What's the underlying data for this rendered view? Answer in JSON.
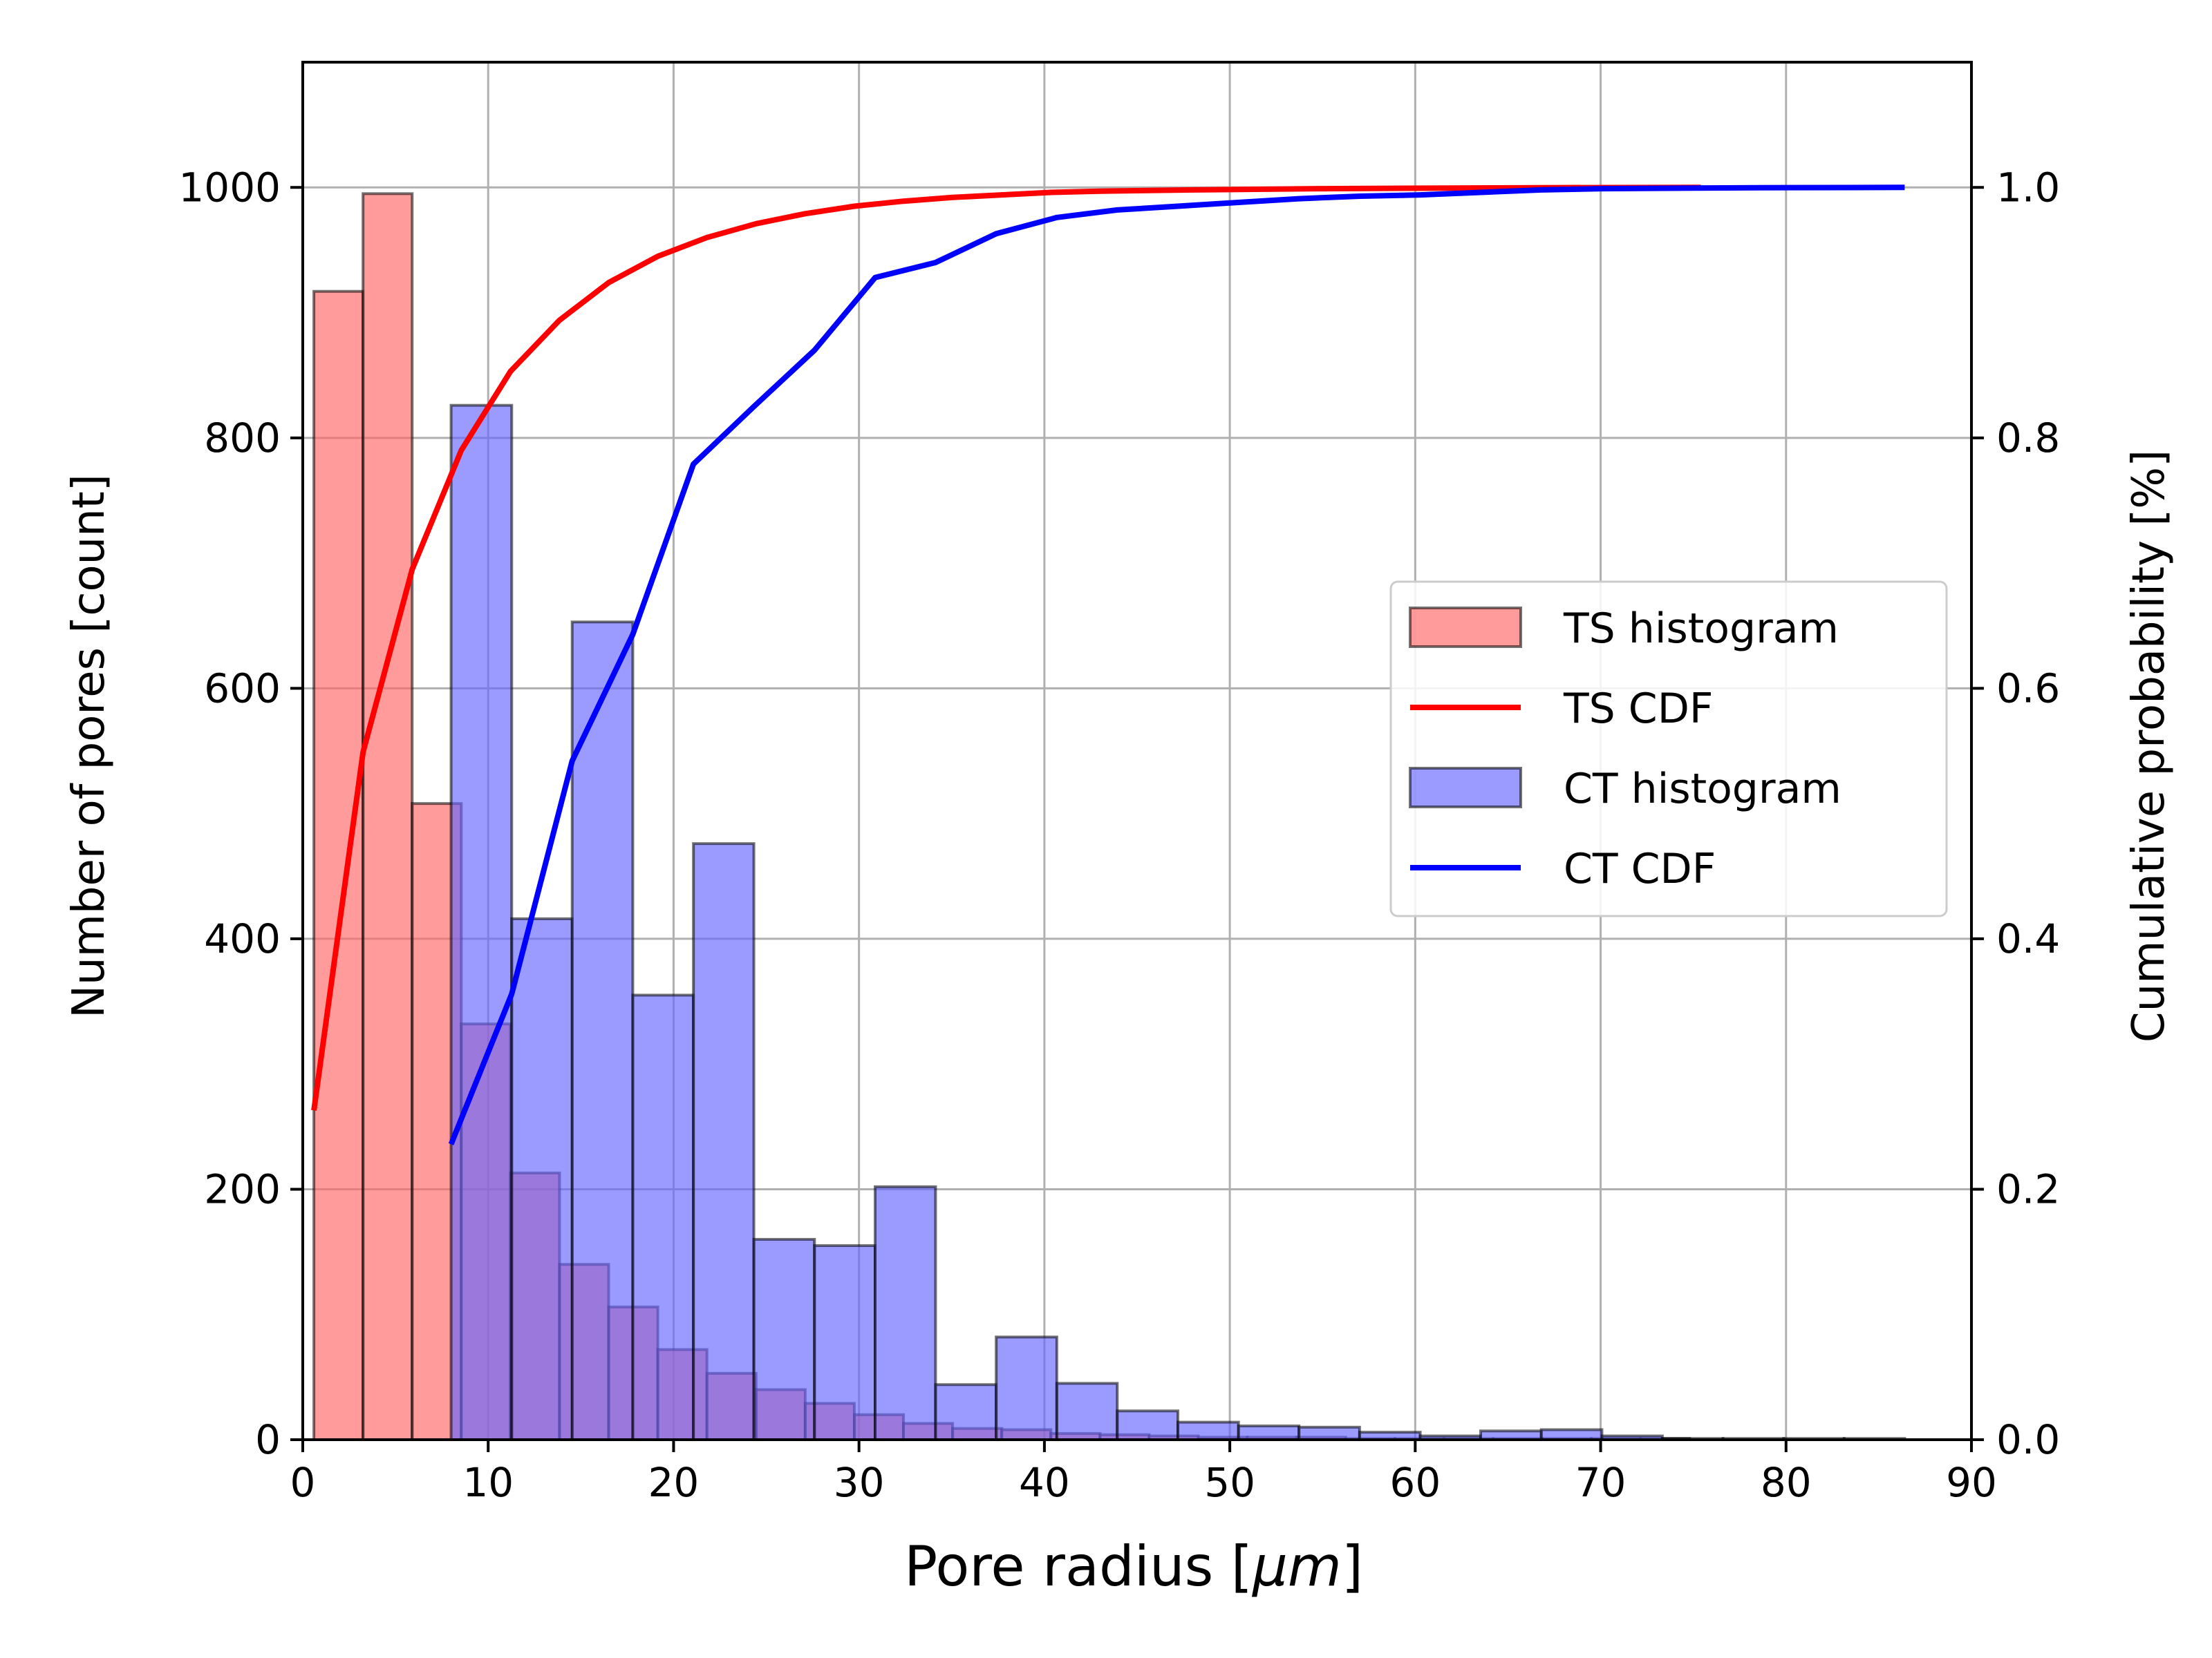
{
  "chart_data": {
    "type": "bar",
    "title": "",
    "xlabel": "Pore radius [μm]",
    "xlabel_parts": {
      "prefix": "Pore radius [",
      "math": "μm",
      "suffix": "]"
    },
    "ylabel": "Number of pores [count]",
    "y2label": "Cumulative probability [%]",
    "xlim": [
      0,
      90
    ],
    "ylim": [
      0,
      1100
    ],
    "y2lim": [
      0,
      1.1
    ],
    "xticks": [
      0,
      10,
      20,
      30,
      40,
      50,
      60,
      70,
      80,
      90
    ],
    "yticks": [
      0,
      200,
      400,
      600,
      800,
      1000
    ],
    "y2ticks": [
      "0.0",
      "0.2",
      "0.4",
      "0.6",
      "0.8",
      "1.0"
    ],
    "grid": true,
    "legend_position": "center-right",
    "histograms": [
      {
        "name": "TS histogram",
        "color": "#ff6666",
        "alpha": 0.65,
        "edges": [
          0.6,
          3.25,
          5.9,
          8.55,
          11.2,
          13.85,
          16.5,
          19.15,
          21.8,
          24.45,
          27.1,
          29.75,
          32.4,
          35.05,
          37.7,
          40.35,
          43.0,
          45.65,
          48.3,
          50.95,
          53.6,
          56.25,
          58.9,
          61.55,
          64.2,
          66.85,
          69.5,
          72.15,
          74.8
        ],
        "counts": [
          917,
          995,
          508,
          332,
          213,
          140,
          106,
          72,
          53,
          40,
          29,
          20,
          13,
          9,
          8,
          5,
          4,
          3,
          2,
          2,
          2,
          1,
          1,
          1,
          1,
          1,
          1,
          1
        ]
      },
      {
        "name": "CT histogram",
        "color": "#6666ff",
        "alpha": 0.65,
        "edges": [
          8.0,
          11.27,
          14.53,
          17.8,
          21.07,
          24.33,
          27.6,
          30.87,
          34.13,
          37.4,
          40.67,
          43.93,
          47.2,
          50.47,
          53.73,
          57.0,
          60.27,
          63.53,
          66.8,
          70.07,
          73.33,
          76.6,
          79.87,
          83.13,
          86.4
        ],
        "counts": [
          826,
          416,
          653,
          355,
          476,
          160,
          155,
          202,
          44,
          82,
          45,
          23,
          14,
          11,
          10,
          6,
          3,
          7,
          8,
          3,
          1,
          1,
          1,
          1
        ]
      }
    ],
    "series": [
      {
        "name": "TS CDF",
        "color": "#ff0000",
        "x": [
          0.6,
          3.25,
          5.9,
          8.55,
          11.2,
          13.85,
          16.5,
          19.15,
          21.8,
          24.45,
          27.1,
          29.75,
          32.4,
          35.05,
          37.7,
          40.35,
          43.0,
          48.0,
          55.0,
          62.0,
          68.0,
          75.4
        ],
        "y": [
          0.263,
          0.549,
          0.695,
          0.79,
          0.853,
          0.894,
          0.924,
          0.945,
          0.96,
          0.971,
          0.979,
          0.985,
          0.989,
          0.992,
          0.994,
          0.996,
          0.997,
          0.998,
          0.999,
          0.9995,
          0.9998,
          1.0
        ]
      },
      {
        "name": "CT CDF",
        "color": "#0000ff",
        "x": [
          8.0,
          11.27,
          14.53,
          17.8,
          21.07,
          24.33,
          27.6,
          30.87,
          34.13,
          37.4,
          40.67,
          43.93,
          47.2,
          50.47,
          53.73,
          57.0,
          60.27,
          63.53,
          66.8,
          70.07,
          75.0,
          80.0,
          86.4
        ],
        "y": [
          0.236,
          0.356,
          0.542,
          0.643,
          0.779,
          0.825,
          0.87,
          0.928,
          0.94,
          0.963,
          0.976,
          0.982,
          0.985,
          0.988,
          0.991,
          0.993,
          0.994,
          0.996,
          0.998,
          0.999,
          0.9995,
          0.9998,
          1.0
        ]
      }
    ],
    "legend": [
      "TS histogram",
      "TS CDF",
      "CT histogram",
      "CT CDF"
    ]
  }
}
